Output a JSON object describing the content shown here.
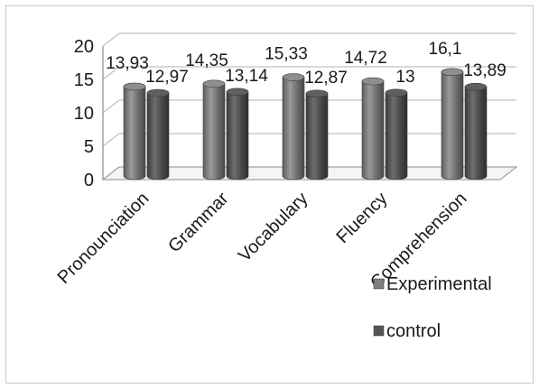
{
  "chart_data": {
    "type": "bar",
    "categories": [
      "Pronounciation",
      "Grammar",
      "Vocabulary",
      "Fluency",
      "Comprehension"
    ],
    "series": [
      {
        "name": "Experimental",
        "values": [
          13.93,
          14.35,
          15.33,
          14.72,
          16.1
        ],
        "labels": [
          "13,93",
          "14,35",
          "15,33",
          "14,72",
          "16,1"
        ],
        "color": "#7f7f7f"
      },
      {
        "name": "control",
        "values": [
          12.97,
          13.14,
          12.87,
          13,
          13.89
        ],
        "labels": [
          "12,97",
          "13,14",
          "12,87",
          "13",
          "13,89"
        ],
        "color": "#555555"
      }
    ],
    "ylim": [
      0,
      20
    ],
    "yticks": [
      "0",
      "5",
      "10",
      "15",
      "20"
    ],
    "grid": true,
    "legend": "right",
    "style": "3d-cylinder"
  }
}
